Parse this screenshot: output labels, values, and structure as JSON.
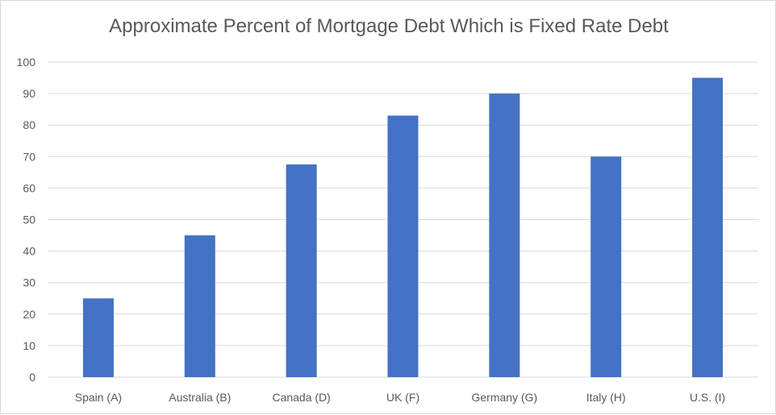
{
  "chart_data": {
    "type": "bar",
    "title": "Approximate Percent of Mortgage Debt Which is Fixed Rate Debt",
    "xlabel": "",
    "ylabel": "",
    "categories": [
      "Spain (A)",
      "Australia (B)",
      "Canada (D)",
      "UK (F)",
      "Germany (G)",
      "Italy (H)",
      "U.S. (I)"
    ],
    "values": [
      25,
      45,
      67.5,
      83,
      90,
      70,
      95
    ],
    "ylim": [
      0,
      100
    ],
    "yticks": [
      0,
      10,
      20,
      30,
      40,
      50,
      60,
      70,
      80,
      90,
      100
    ],
    "grid": true,
    "legend": "none",
    "bar_color": "#4472c4",
    "grid_color": "#d9d9d9",
    "text_color": "#595959"
  }
}
